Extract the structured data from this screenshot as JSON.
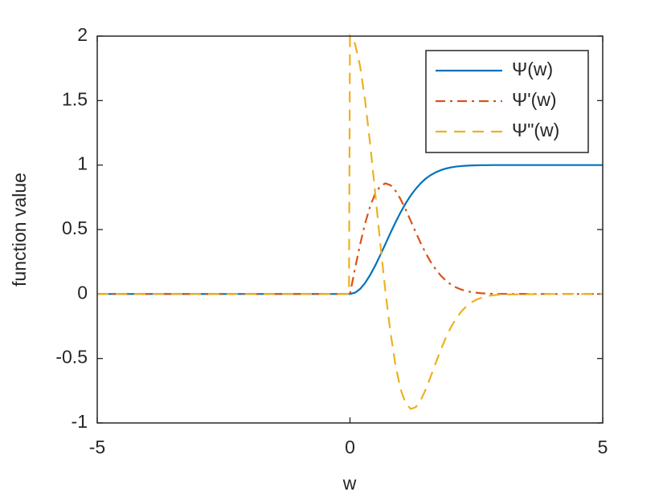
{
  "chart_data": {
    "type": "line",
    "xlabel": "w",
    "ylabel": "function value",
    "xlim": [
      -5,
      5
    ],
    "ylim": [
      -1,
      2
    ],
    "xticks": [
      -5,
      0,
      5
    ],
    "yticks": [
      -1,
      -0.5,
      0,
      0.5,
      1,
      1.5,
      2
    ],
    "grid": false,
    "legend": "northeast",
    "x": [
      -5,
      -0.02,
      0,
      0.1,
      0.2,
      0.3,
      0.4,
      0.5,
      0.6,
      0.7,
      0.8,
      0.9,
      1,
      1.1,
      1.2,
      1.3,
      1.4,
      1.5,
      1.6,
      1.7,
      1.8,
      1.9,
      2,
      2.1,
      2.2,
      2.3,
      2.4,
      2.5,
      2.6,
      2.7,
      2.8,
      2.9,
      3,
      4,
      5
    ],
    "series": [
      {
        "name": "Ψ(w)",
        "color": "#0072bd",
        "dash": "solid",
        "values": [
          0,
          0,
          0,
          0.01,
          0.039,
          0.086,
          0.148,
          0.221,
          0.302,
          0.387,
          0.473,
          0.555,
          0.632,
          0.702,
          0.763,
          0.815,
          0.859,
          0.895,
          0.923,
          0.944,
          0.961,
          0.973,
          0.982,
          0.988,
          0.992,
          0.995,
          0.997,
          0.998,
          0.999,
          0.999,
          1,
          1,
          1,
          1,
          1
        ]
      },
      {
        "name": "Ψ'(w)",
        "color": "#d95319",
        "dash": "dashdot",
        "values": [
          0,
          0,
          0,
          0.198,
          0.384,
          0.548,
          0.682,
          0.779,
          0.837,
          0.858,
          0.844,
          0.801,
          0.736,
          0.656,
          0.569,
          0.48,
          0.394,
          0.316,
          0.247,
          0.189,
          0.141,
          0.103,
          0.073,
          0.051,
          0.035,
          0.023,
          0.015,
          0.01,
          0.006,
          0.004,
          0.002,
          0.001,
          0.001,
          0,
          0
        ]
      },
      {
        "name": "Ψ\"(w)",
        "color": "#edb120",
        "dash": "dashed",
        "values": [
          0,
          0,
          2,
          1.94,
          1.768,
          1.499,
          1.159,
          0.779,
          0.391,
          0.025,
          -0.295,
          -0.552,
          -0.736,
          -0.847,
          -0.891,
          -0.878,
          -0.823,
          -0.738,
          -0.637,
          -0.531,
          -0.429,
          -0.336,
          -0.256,
          -0.19,
          -0.137,
          -0.097,
          -0.066,
          -0.044,
          -0.029,
          -0.018,
          -0.011,
          -0.007,
          -0.004,
          0,
          0
        ]
      }
    ]
  }
}
